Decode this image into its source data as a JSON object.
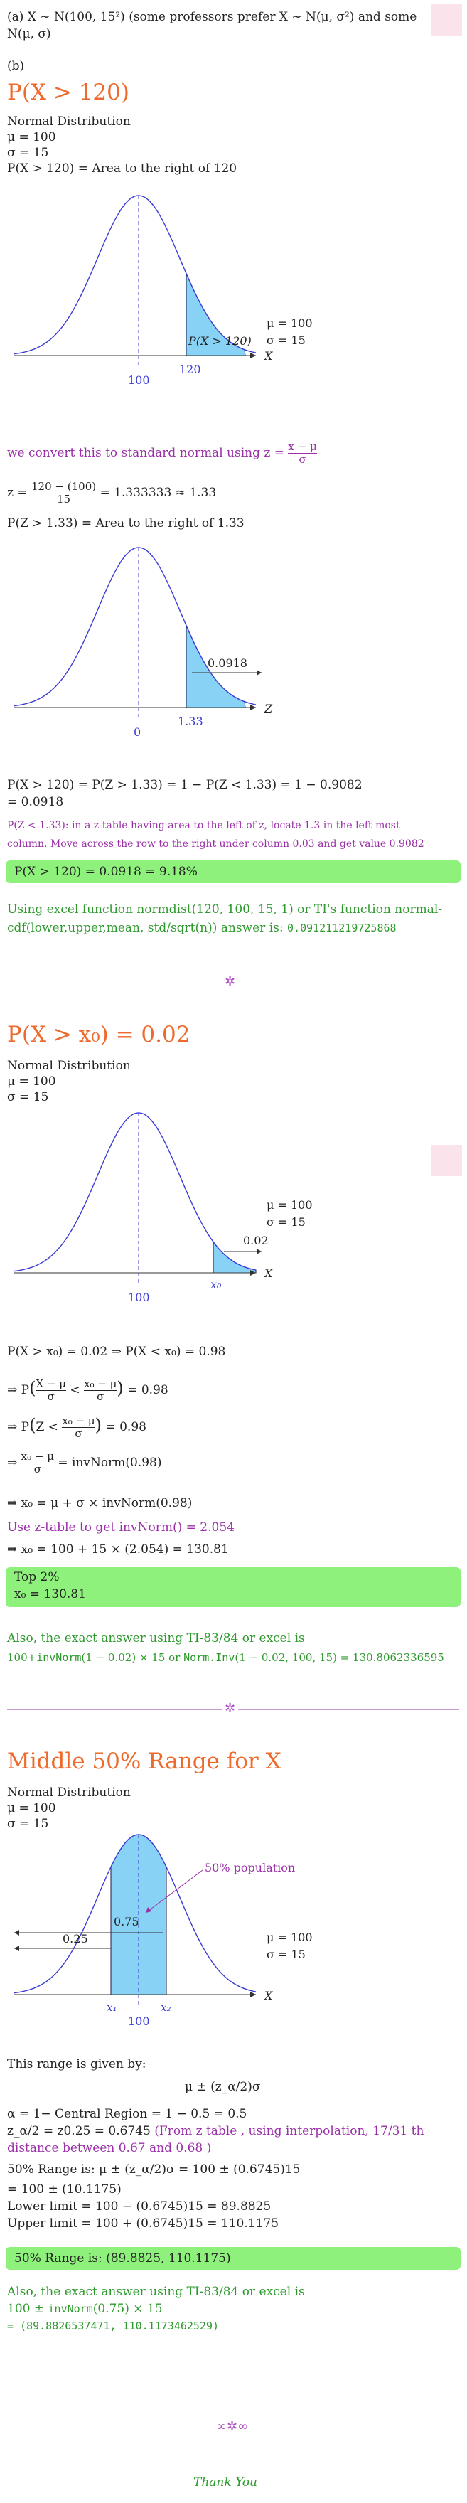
{
  "part_a": {
    "text": "(a) X ∼ N(100, 15²) (some professors prefer X ∼ N(μ, σ²) and some N(μ, σ)"
  },
  "part_b": {
    "label": "(b)"
  },
  "s1": {
    "title": "P(X > 120)",
    "dist": "Normal Distribution",
    "mu": "μ = 100",
    "sigma": "σ = 15",
    "area": "P(X > 120) = Area to the right of 120",
    "g1": {
      "mu": "μ = 100",
      "sigma": "σ = 15",
      "tail_label": "P(X > 120)",
      "mean_tick": "100",
      "x_tick": "120",
      "axis": "X"
    },
    "convert_prefix": "we convert this to standard normal using z =",
    "convert_num": "x − μ",
    "convert_den": "σ",
    "z_prefix": "z =",
    "z_num": "120 − (100)",
    "z_den": "15",
    "z_suffix": "= 1.333333 ≈ 1.33",
    "pz": "P(Z > 1.33) = Area to the right of 1.33",
    "g2": {
      "tail_label": "0.0918",
      "mean_tick": "0",
      "z_tick": "1.33",
      "axis": "Z"
    },
    "calc1": "P(X > 120) = P(Z > 1.33) = 1 − P(Z < 1.33) = 1 − 0.9082",
    "calc2": "= 0.0918",
    "note1": "P(Z < 1.33): in a z-table having area to the left of z, locate 1.3 in the left most",
    "note2": "column. Move across the row to the right under column 0.03 and get value 0.9082",
    "answer": "P(X > 120) = 0.0918 = 9.18%",
    "excel1": "Using excel function normdist(120, 100, 15, 1) or TI's function normal-",
    "excel2_text": "cdf(lower,upper,mean, std/sqrt(n)) answer is:",
    "excel2_value": "0.091211219725868"
  },
  "s2": {
    "title": "P(X > x₀) = 0.02",
    "dist": "Normal Distribution",
    "mu": "μ = 100",
    "sigma": "σ = 15",
    "g3": {
      "mu": "μ = 100",
      "sigma": "σ = 15",
      "tail_label": "0.02",
      "mean_tick": "100",
      "x_tick": "x₀",
      "axis": "X"
    },
    "step1": "P(X > x₀) = 0.02 ⇒ P(X < x₀) = 0.98",
    "step2a": "⇒ P",
    "step2_num1": "X − μ",
    "step2_den1": "σ",
    "step2_lt": "<",
    "step2_num2": "x₀ − μ",
    "step2_den2": "σ",
    "step2_end": "= 0.98",
    "step3a": "⇒ P",
    "step3_z": "Z <",
    "step3_num": "x₀ − μ",
    "step3_den": "σ",
    "step3_end": "= 0.98",
    "step4a": "⇒",
    "step4_num": "x₀ − μ",
    "step4_den": "σ",
    "step4_end": "= invNorm(0.98)",
    "step5": "⇒ x₀ = μ + σ × invNorm(0.98)",
    "ztable": "Use z-table to get invNorm() = 2.054",
    "step6": "⇒ x₀ = 100 + 15 × (2.054) = 130.81",
    "answer1": "Top 2%",
    "answer2": "x₀ = 130.81",
    "also": "Also, the exact answer using TI-83/84 or excel is",
    "exact_a": "100+",
    "exact_b": "invNorm",
    "exact_c": "(1 − 0.02) × 15 or",
    "exact_d": "Norm.Inv",
    "exact_e": "(1 − 0.02, 100, 15) = 130.8062336595"
  },
  "s3": {
    "title": "Middle 50% Range for X",
    "dist": "Normal Distribution",
    "mu": "μ = 100",
    "sigma": "σ = 15",
    "g4": {
      "pop": "50% population",
      "mu": "μ = 100",
      "sigma": "σ = 15",
      "inner": "0.75",
      "outer": "0.25",
      "x1": "x₁",
      "x2": "x₂",
      "mean_tick": "100",
      "axis": "X"
    },
    "given": "This range is given by:",
    "formula": "μ ± (z_α/2)σ",
    "alpha": "α = 1− Central Region = 1 − 0.5 = 0.5",
    "zline_a": "z_α/2 = z0.25 = 0.6745",
    "zline_b": "(From z table , using interpolation, 17/31 th",
    "zline_c": "distance between 0.67 and 0.68 )",
    "range1": "50% Range is: μ ± (z_α/2)σ = 100 ± (0.6745)15",
    "range2": "= 100 ± (10.1175)",
    "lower": "Lower limit = 100 − (0.6745)15 = 89.8825",
    "upper": "Upper limit = 100 + (0.6745)15 = 110.1175",
    "answer": "50% Range is: (89.8825, 110.1175)",
    "also": "Also, the exact answer using TI-83/84 or excel is",
    "exact1a": "100 ±",
    "exact1b": "invNorm",
    "exact1c": "(0.75) × 15",
    "exact2": "= (89.8826537471, 110.1173462529)"
  },
  "thanks": "Thank You",
  "colors": {
    "orange": "#ee6a2c",
    "purple": "#9a2fa8",
    "green": "#2e9a2e",
    "highlight": "#8ef17b",
    "curve": "#3b3bd6",
    "fill": "#88d3f5"
  }
}
